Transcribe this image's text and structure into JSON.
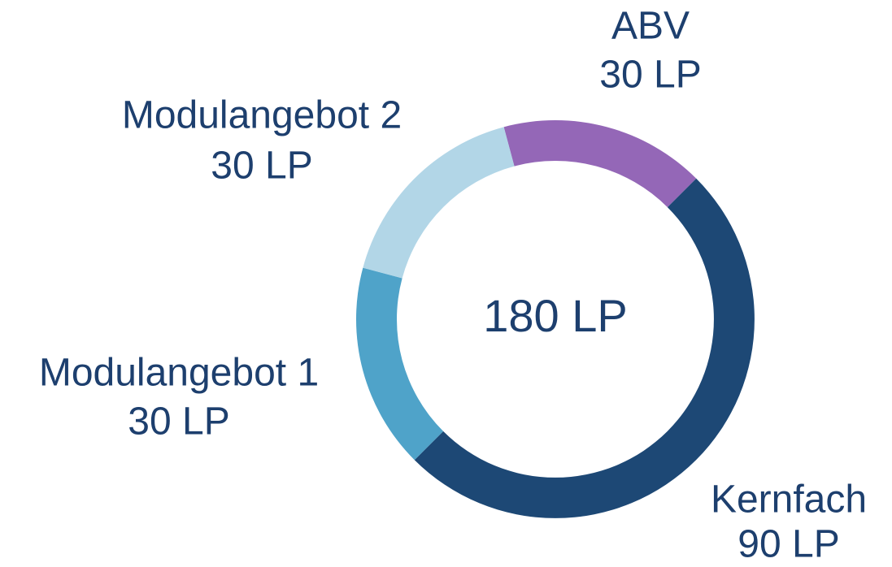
{
  "chart_data": {
    "type": "donut",
    "categories": [
      "ABV",
      "Kernfach",
      "Modulangebot 1",
      "Modulangebot 2"
    ],
    "values": [
      30,
      90,
      30,
      30
    ],
    "value_labels": [
      "30 LP",
      "90 LP",
      "30 LP",
      "30 LP"
    ],
    "colors": [
      "#9467b7",
      "#1d4875",
      "#4fa3c9",
      "#b2d6e7"
    ],
    "center_label": "180 LP"
  }
}
